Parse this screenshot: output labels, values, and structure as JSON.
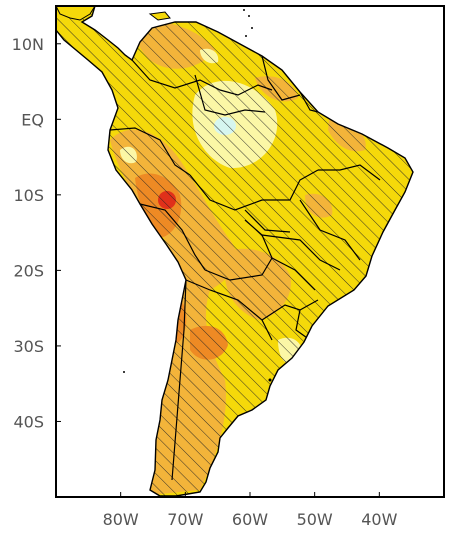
{
  "map": {
    "lat_labels": [
      "10N",
      "EQ",
      "10S",
      "20S",
      "30S",
      "40S"
    ],
    "lon_labels": [
      "80W",
      "70W",
      "60W",
      "50W",
      "40W"
    ],
    "lat_values": [
      10,
      0,
      -10,
      -20,
      -30,
      -40
    ],
    "lon_values": [
      -80,
      -70,
      -60,
      -50,
      -40
    ],
    "lon_range": [
      -90,
      -30
    ],
    "lat_range": [
      -50,
      15
    ],
    "hatching": "diagonal over land",
    "colors": {
      "ocean": "#ffffff",
      "land_base": "#f5d90a",
      "light_yellow": "#fbf7a6",
      "pale_cyan": "#d6f6f0",
      "light_orange": "#f3b43a",
      "orange": "#ee8a24",
      "red": "#e0301a",
      "border": "#000000"
    }
  }
}
